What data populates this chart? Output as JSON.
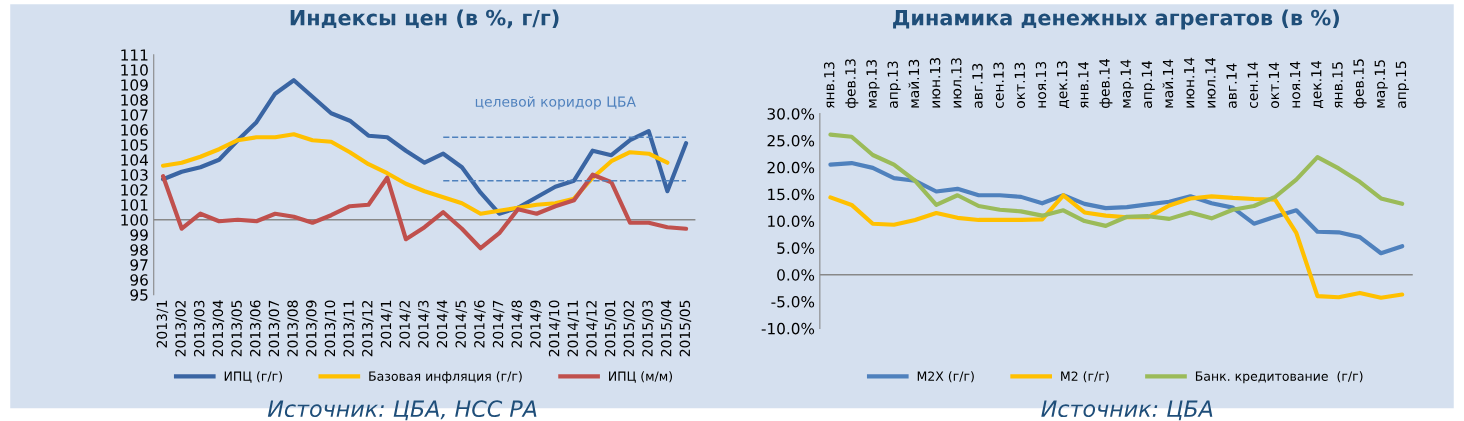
{
  "chart_data": [
    {
      "type": "line",
      "title": "Индексы цен (в %, г/г)",
      "categories": [
        "2013/1",
        "2013/02",
        "2013/03",
        "2013/04",
        "2013/05",
        "2013/06",
        "2013/07",
        "2013/08",
        "2013/09",
        "2013/10",
        "2013/11",
        "2013/12",
        "2014/1",
        "2014/2",
        "2014/3",
        "2014/4",
        "2014/5",
        "2014/6",
        "2014/7",
        "2014/8",
        "2014/9",
        "2014/10",
        "2014/11",
        "2014/12",
        "2015/01",
        "2015/02",
        "2015/03",
        "2015/04",
        "2015/05"
      ],
      "series": [
        {
          "name": "ИПЦ (г/г)",
          "color": "#3a65a3",
          "values": [
            102.7,
            103.2,
            103.5,
            104.0,
            105.3,
            106.5,
            108.4,
            109.3,
            108.2,
            107.1,
            106.6,
            105.6,
            105.5,
            104.6,
            103.8,
            104.4,
            103.5,
            101.8,
            100.4,
            100.8,
            101.5,
            102.2,
            102.6,
            104.6,
            104.3,
            105.3,
            105.9,
            101.9,
            105.1
          ]
        },
        {
          "name": "Базовая инфляция (г/г)",
          "color": "#ffc000",
          "values": [
            103.6,
            103.8,
            104.2,
            104.7,
            105.3,
            105.5,
            105.5,
            105.7,
            105.3,
            105.2,
            104.5,
            103.7,
            103.1,
            102.4,
            101.9,
            101.5,
            101.1,
            100.4,
            100.6,
            100.8,
            101.0,
            101.1,
            101.4,
            102.8,
            103.9,
            104.5,
            104.4,
            103.8,
            null
          ]
        },
        {
          "name": "ИПЦ (м/м)",
          "color": "#c0504d",
          "values": [
            102.9,
            99.4,
            100.4,
            99.9,
            100.0,
            99.9,
            100.4,
            100.2,
            99.8,
            100.3,
            100.9,
            101.0,
            102.8,
            98.7,
            99.5,
            100.5,
            99.4,
            98.1,
            99.1,
            100.7,
            100.4,
            100.9,
            101.3,
            103.0,
            102.5,
            99.8,
            99.8,
            99.5,
            99.4
          ]
        },
        {
          "color": "#4f81bd",
          "line_style": "dashed",
          "values": [
            null,
            null,
            null,
            null,
            null,
            null,
            null,
            null,
            null,
            null,
            null,
            null,
            null,
            null,
            null,
            105.5,
            105.5,
            105.5,
            105.5,
            105.5,
            105.5,
            105.5,
            105.5,
            105.5,
            105.5,
            105.5,
            105.5,
            105.5,
            105.5
          ]
        },
        {
          "color": "#4f81bd",
          "line_style": "dashed",
          "values": [
            null,
            null,
            null,
            null,
            null,
            null,
            null,
            null,
            null,
            null,
            null,
            null,
            null,
            null,
            null,
            102.6,
            102.6,
            102.6,
            102.6,
            102.6,
            102.6,
            102.6,
            102.6,
            102.6,
            102.6,
            102.6,
            102.6,
            102.6,
            102.6
          ]
        }
      ],
      "ylim": [
        95,
        111
      ],
      "yticks": [
        95,
        96,
        97,
        98,
        99,
        100,
        101,
        102,
        103,
        104,
        105,
        106,
        107,
        108,
        109,
        110,
        111
      ],
      "grid": false,
      "legend": "bottom",
      "marker": "none",
      "line_style": "solid",
      "ref_lines": [
        {
          "axis": "y",
          "value": 100,
          "color": "#888888"
        }
      ],
      "annotations": [
        {
          "text": "целевой коридор ЦБА",
          "x": "2014/10",
          "y": 105.5
        },
        "Источник: ЦБА, НСС РА"
      ]
    },
    {
      "type": "line",
      "title": "Динамика денежных агрегатов (в %)",
      "categories": [
        "янв.13",
        "фев.13",
        "мар.13",
        "апр.13",
        "май.13",
        "июн.13",
        "июл.13",
        "авг.13",
        "сен.13",
        "окт.13",
        "ноя.13",
        "дек.13",
        "янв.14",
        "фев.14",
        "мар.14",
        "апр.14",
        "май.14",
        "июн.14",
        "июл.14",
        "авг.14",
        "сен.14",
        "окт.14",
        "ноя.14",
        "дек.14",
        "янв.15",
        "фев.15",
        "мар.15",
        "апр.15"
      ],
      "series": [
        {
          "name": "M2X (г/г)",
          "color": "#4f81bd",
          "values": [
            20.5,
            20.8,
            19.9,
            18.0,
            17.5,
            15.5,
            16.0,
            14.8,
            14.8,
            14.5,
            13.3,
            14.8,
            13.2,
            12.4,
            12.6,
            13.1,
            13.6,
            14.6,
            13.3,
            12.5,
            9.5,
            10.8,
            12.0,
            8.0,
            7.9,
            7.0,
            4.0,
            5.3
          ]
        },
        {
          "name": "M2 (г/г)",
          "color": "#ffc000",
          "values": [
            14.4,
            13.0,
            9.5,
            9.3,
            10.2,
            11.5,
            10.6,
            10.2,
            10.2,
            10.2,
            10.3,
            14.8,
            11.6,
            11.0,
            10.7,
            10.7,
            12.9,
            14.2,
            14.6,
            14.3,
            14.1,
            14.0,
            7.8,
            -4.0,
            -4.2,
            -3.4,
            -4.3,
            -3.7
          ]
        },
        {
          "name": "Банк. кредитование  (г/г)",
          "color": "#9bbb59",
          "values": [
            26.1,
            25.7,
            22.3,
            20.5,
            17.5,
            13.0,
            14.8,
            12.8,
            12.1,
            11.8,
            11.0,
            12.0,
            10.0,
            9.1,
            10.8,
            10.9,
            10.4,
            11.6,
            10.5,
            12.1,
            12.8,
            14.5,
            17.7,
            21.9,
            19.8,
            17.3,
            14.2,
            13.2
          ]
        }
      ],
      "ylim": [
        -10,
        30
      ],
      "yticks": [
        {
          "value": -10,
          "label": "-10.0%"
        },
        {
          "value": -5,
          "label": "-5.0%"
        },
        {
          "value": 0,
          "label": "0.0%"
        },
        {
          "value": 5,
          "label": "5.0%"
        },
        {
          "value": 10,
          "label": "10.0%"
        },
        {
          "value": 15,
          "label": "15.0%"
        },
        {
          "value": 20,
          "label": "20.0%"
        },
        {
          "value": 25,
          "label": "25.0%"
        },
        {
          "value": 30,
          "label": "30.0%"
        }
      ],
      "grid": false,
      "legend": "bottom",
      "marker": "none",
      "line_style": "solid",
      "ref_lines": [
        {
          "axis": "y",
          "value": 0,
          "color": "#888888"
        }
      ],
      "annotations": [
        "Источник: ЦБА"
      ]
    }
  ]
}
